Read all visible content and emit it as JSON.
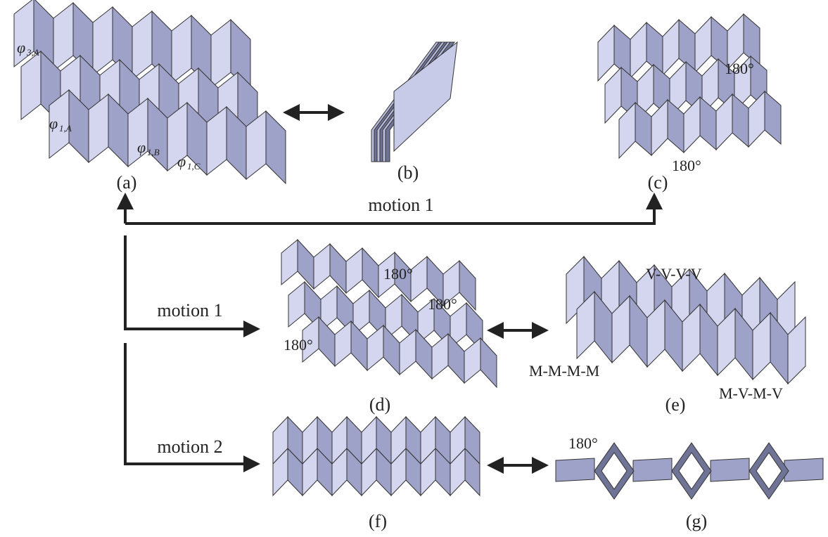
{
  "panels": {
    "a": {
      "label": "(a)",
      "angles": [
        {
          "symbol": "φ",
          "subscript": "3,A"
        },
        {
          "symbol": "φ",
          "subscript": "1,A"
        },
        {
          "symbol": "φ",
          "subscript": "1,B"
        },
        {
          "symbol": "φ",
          "subscript": "1,C"
        }
      ]
    },
    "b": {
      "label": "(b)"
    },
    "c": {
      "label": "(c)",
      "angles": [
        "180°",
        "180°"
      ]
    },
    "d": {
      "label": "(d)",
      "angles": [
        "180°",
        "180°",
        "180°"
      ]
    },
    "e": {
      "label": "(e)",
      "patterns": [
        "V-V-V-V",
        "M-M-M-M",
        "M-V-M-V"
      ]
    },
    "f": {
      "label": "(f)"
    },
    "g": {
      "label": "(g)",
      "angles": [
        "180°"
      ]
    }
  },
  "motions": [
    "motion 1",
    "motion 1",
    "motion 2"
  ]
}
